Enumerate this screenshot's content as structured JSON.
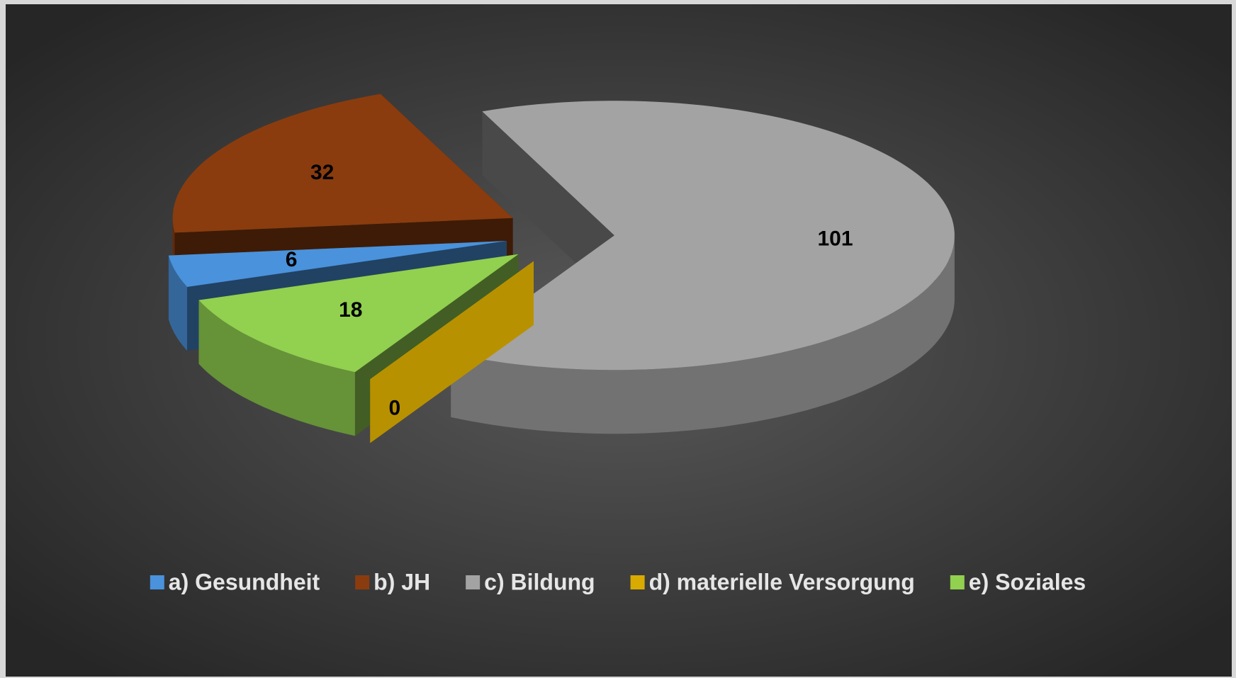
{
  "chart_data": {
    "type": "pie",
    "categories": [
      "a) Gesundheit",
      "b) JH",
      "c) Bildung",
      "d) materielle Versorgung",
      "e) Soziales"
    ],
    "values": [
      6,
      32,
      101,
      0,
      18
    ],
    "colors": [
      "#4a92db",
      "#8a3c0e",
      "#a3a3a3",
      "#d9aa00",
      "#92d050"
    ],
    "legend": "bottom"
  }
}
